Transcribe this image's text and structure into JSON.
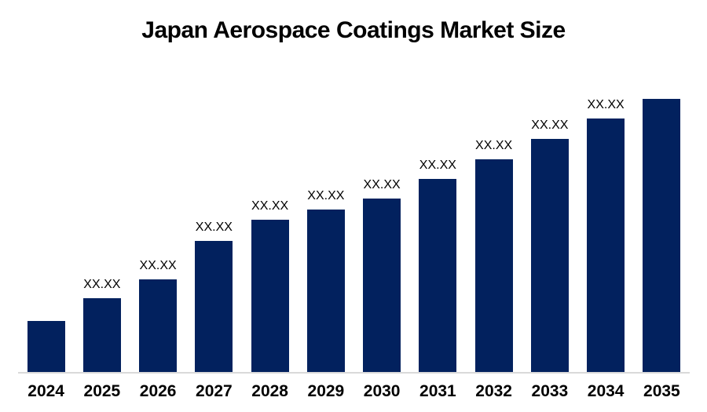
{
  "title": "Japan Aerospace Coatings Market Size",
  "chart_data": {
    "type": "bar",
    "title": "Japan Aerospace Coatings Market Size",
    "categories": [
      "2024",
      "2025",
      "2026",
      "2027",
      "2028",
      "2029",
      "2030",
      "2031",
      "2032",
      "2033",
      "2034",
      "2035"
    ],
    "bar_value_labels": [
      "",
      "XX.XX",
      "XX.XX",
      "XX.XX",
      "XX.XX",
      "XX.XX",
      "XX.XX",
      "XX.XX",
      "XX.XX",
      "XX.XX",
      "XX.XX",
      ""
    ],
    "values_note": "numeric values are masked as XX.XX in the chart; values below are pixel-measured relative bar magnitudes",
    "values": [
      65,
      94,
      118,
      167,
      194,
      207,
      221,
      246,
      271,
      297,
      323,
      348
    ],
    "ylim": [
      0,
      360
    ],
    "xlabel": "",
    "ylabel": "",
    "y_axis": "hidden",
    "gridlines": false,
    "legend": "none",
    "colors": {
      "bar": "#02215E",
      "axis_line": "#D9D9D9",
      "text": "#000000",
      "background": "#FFFFFF"
    }
  }
}
